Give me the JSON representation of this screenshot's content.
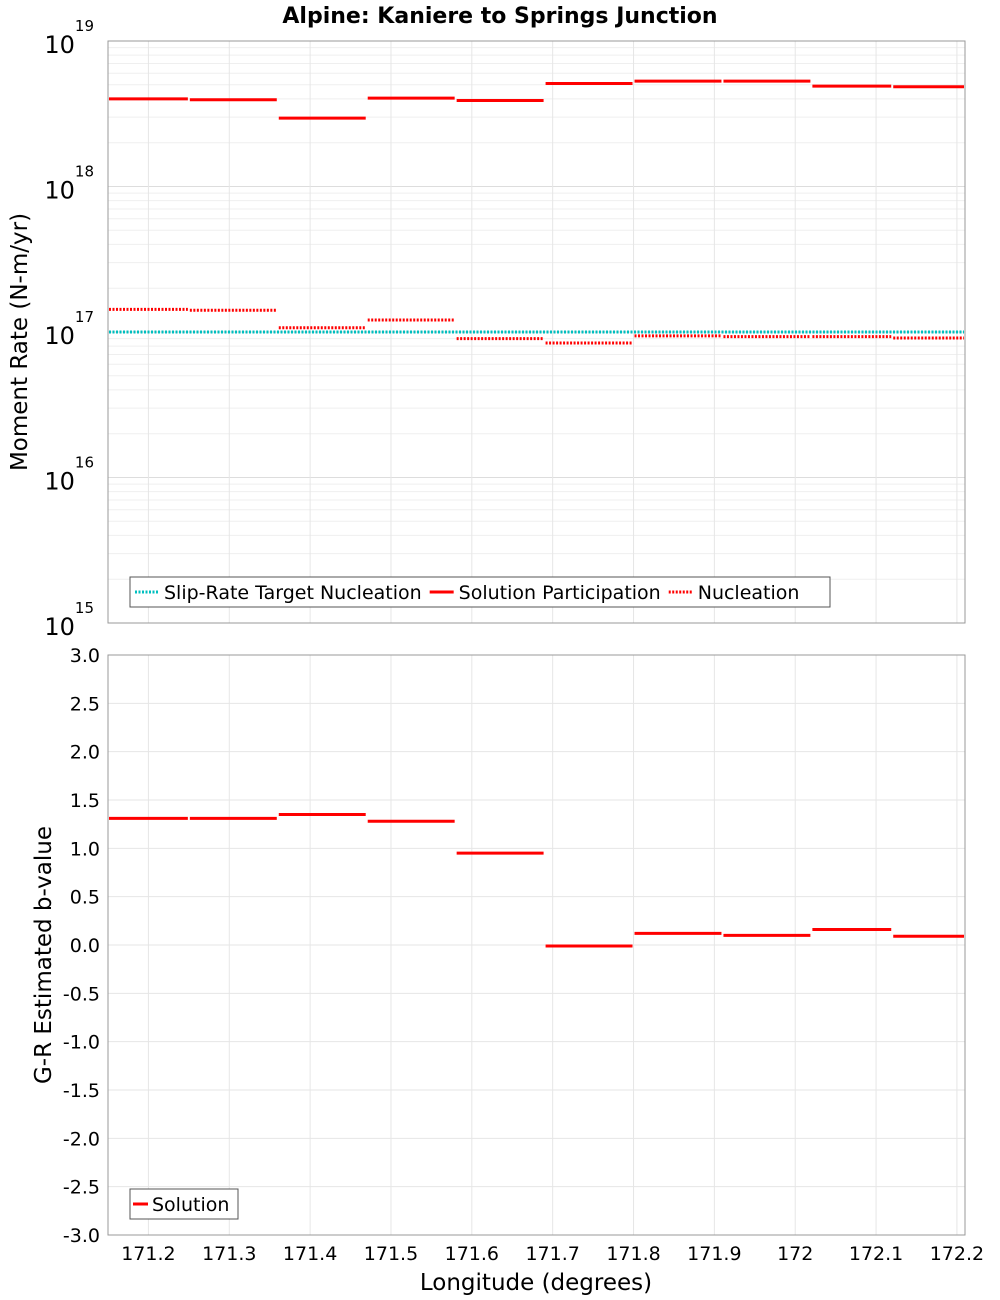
{
  "title": "Alpine: Kaniere to Springs Junction",
  "chart_data": [
    {
      "type": "line",
      "title": "Alpine: Kaniere to Springs Junction",
      "xlabel": "",
      "ylabel": "Moment Rate (N-m/yr)",
      "yscale": "log",
      "ylim": [
        1000000000000000.0,
        1e+19
      ],
      "xlim": [
        171.15,
        172.21
      ],
      "y_tick_labels": [
        {
          "value": 1000000000000000.0,
          "base": "10",
          "exp": "15"
        },
        {
          "value": 1e+16,
          "base": "10",
          "exp": "16"
        },
        {
          "value": 1e+17,
          "base": "10",
          "exp": "17"
        },
        {
          "value": 1e+18,
          "base": "10",
          "exp": "18"
        },
        {
          "value": 1e+19,
          "base": "10",
          "exp": "19"
        }
      ],
      "grid": true,
      "legend_placement": "bottom-left",
      "series": [
        {
          "name": "Slip-Rate Target Nucleation",
          "color": "#00bfbf",
          "style": "dotted",
          "segments": [
            {
              "x0": 171.15,
              "x1": 172.21,
              "y": 1e+17
            }
          ]
        },
        {
          "name": "Solution Participation",
          "color": "#ff0000",
          "style": "solid",
          "segments": [
            {
              "x0": 171.15,
              "x1": 171.25,
              "y": 4e+18
            },
            {
              "x0": 171.25,
              "x1": 171.36,
              "y": 3.95e+18
            },
            {
              "x0": 171.36,
              "x1": 171.47,
              "y": 2.95e+18
            },
            {
              "x0": 171.47,
              "x1": 171.58,
              "y": 4.05e+18
            },
            {
              "x0": 171.58,
              "x1": 171.69,
              "y": 3.9e+18
            },
            {
              "x0": 171.69,
              "x1": 171.8,
              "y": 5.1e+18
            },
            {
              "x0": 171.8,
              "x1": 171.91,
              "y": 5.3e+18
            },
            {
              "x0": 171.91,
              "x1": 172.02,
              "y": 5.3e+18
            },
            {
              "x0": 172.02,
              "x1": 172.12,
              "y": 4.9e+18
            },
            {
              "x0": 172.12,
              "x1": 172.21,
              "y": 4.85e+18
            }
          ]
        },
        {
          "name": "Nucleation",
          "color": "#ff0000",
          "style": "dotted",
          "segments": [
            {
              "x0": 171.15,
              "x1": 171.25,
              "y": 1.43e+17
            },
            {
              "x0": 171.25,
              "x1": 171.36,
              "y": 1.41e+17
            },
            {
              "x0": 171.36,
              "x1": 171.47,
              "y": 1.07e+17
            },
            {
              "x0": 171.47,
              "x1": 171.58,
              "y": 1.21e+17
            },
            {
              "x0": 171.58,
              "x1": 171.69,
              "y": 9e+16
            },
            {
              "x0": 171.69,
              "x1": 171.8,
              "y": 8.4e+16
            },
            {
              "x0": 171.8,
              "x1": 171.91,
              "y": 9.4e+16
            },
            {
              "x0": 171.91,
              "x1": 172.02,
              "y": 9.3e+16
            },
            {
              "x0": 172.02,
              "x1": 172.12,
              "y": 9.3e+16
            },
            {
              "x0": 172.12,
              "x1": 172.21,
              "y": 9.1e+16
            }
          ]
        }
      ]
    },
    {
      "type": "line",
      "title": "",
      "xlabel": "Longitude (degrees)",
      "ylabel": "G-R Estimated b-value",
      "ylim": [
        -3.0,
        3.0
      ],
      "xlim": [
        171.15,
        172.21
      ],
      "y_ticks": [
        3.0,
        2.5,
        2.0,
        1.5,
        1.0,
        0.5,
        0.0,
        -0.5,
        -1.0,
        -1.5,
        -2.0,
        -2.5,
        -3.0
      ],
      "y_tick_labels": [
        "3.0",
        "2.5",
        "2.0",
        "1.5",
        "1.0",
        "0.5",
        "0.0",
        "-0.5",
        "-1.0",
        "-1.5",
        "-2.0",
        "-2.5",
        "-3.0"
      ],
      "x_ticks": [
        171.2,
        171.3,
        171.4,
        171.5,
        171.6,
        171.7,
        171.8,
        171.9,
        172.0,
        172.1,
        172.2
      ],
      "x_tick_labels": [
        "171.2",
        "171.3",
        "171.4",
        "171.5",
        "171.6",
        "171.7",
        "171.8",
        "171.9",
        "172",
        "172.1",
        "172.2"
      ],
      "grid": true,
      "legend_placement": "bottom-left",
      "series": [
        {
          "name": "Solution",
          "color": "#ff0000",
          "style": "solid",
          "segments": [
            {
              "x0": 171.15,
              "x1": 171.25,
              "y": 1.31
            },
            {
              "x0": 171.25,
              "x1": 171.36,
              "y": 1.31
            },
            {
              "x0": 171.36,
              "x1": 171.47,
              "y": 1.35
            },
            {
              "x0": 171.47,
              "x1": 171.58,
              "y": 1.28
            },
            {
              "x0": 171.58,
              "x1": 171.69,
              "y": 0.95
            },
            {
              "x0": 171.69,
              "x1": 171.8,
              "y": -0.01
            },
            {
              "x0": 171.8,
              "x1": 171.91,
              "y": 0.12
            },
            {
              "x0": 171.91,
              "x1": 172.02,
              "y": 0.1
            },
            {
              "x0": 172.02,
              "x1": 172.12,
              "y": 0.16
            },
            {
              "x0": 172.12,
              "x1": 172.21,
              "y": 0.09
            }
          ]
        }
      ]
    }
  ]
}
